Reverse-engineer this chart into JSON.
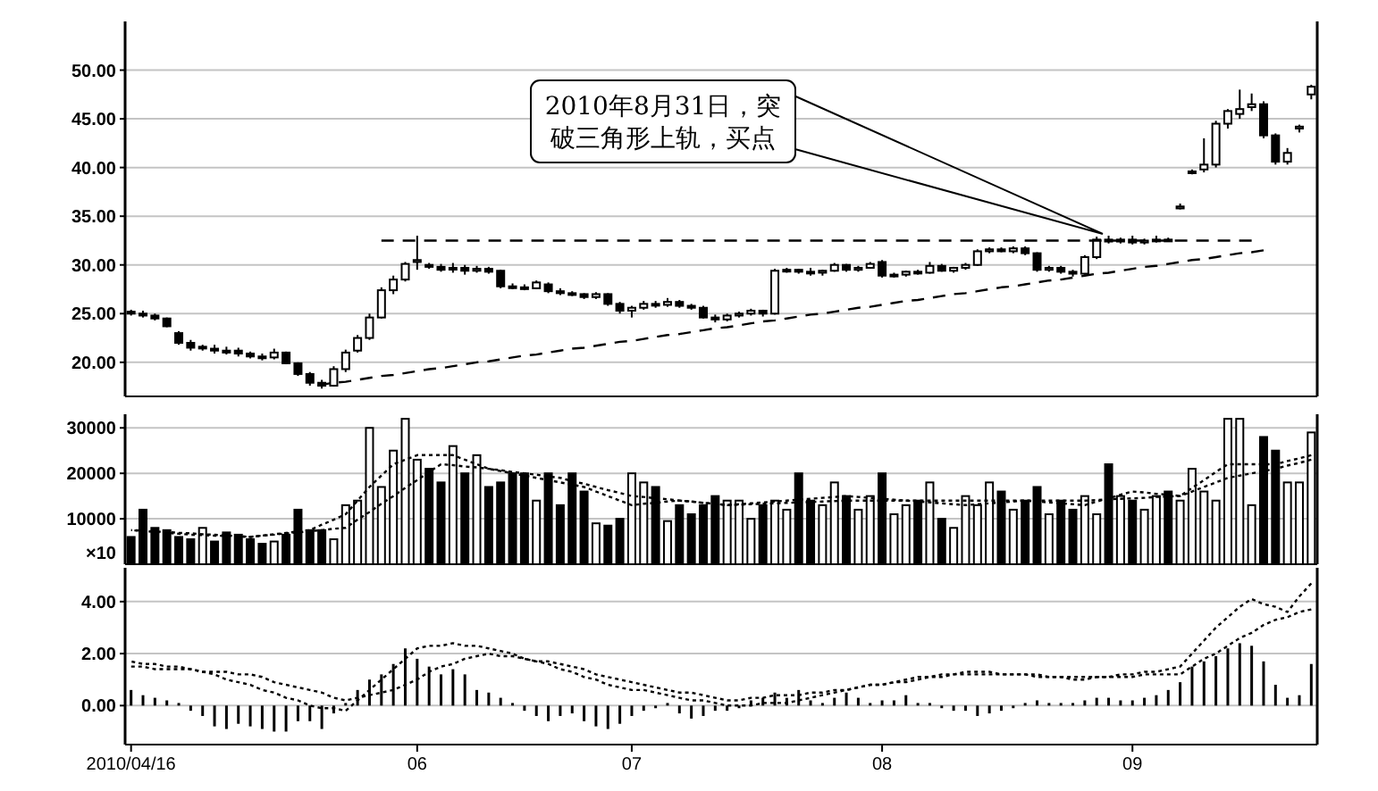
{
  "chart_data": [
    {
      "type": "candlestick",
      "categories": [
        "2010/04/16",
        null,
        null,
        null,
        null,
        null,
        null,
        null,
        null,
        null,
        null,
        null,
        null,
        null,
        null,
        null,
        null,
        null,
        null,
        null,
        null,
        null,
        null,
        null,
        "06",
        null,
        null,
        null,
        null,
        null,
        null,
        null,
        null,
        null,
        null,
        null,
        null,
        null,
        null,
        null,
        null,
        null,
        "07",
        null,
        null,
        null,
        null,
        null,
        null,
        null,
        null,
        null,
        null,
        null,
        null,
        null,
        null,
        null,
        null,
        null,
        null,
        null,
        null,
        "08",
        null,
        null,
        null,
        null,
        null,
        null,
        null,
        null,
        null,
        null,
        null,
        null,
        null,
        null,
        null,
        null,
        null,
        null,
        null,
        null,
        "09",
        null,
        null,
        null,
        null,
        null,
        null,
        null,
        null,
        null,
        null,
        null,
        null,
        null,
        null,
        null
      ],
      "ohlc": [
        [
          25.2,
          25.4,
          24.8,
          25.0
        ],
        [
          25.0,
          25.3,
          24.6,
          24.8
        ],
        [
          24.8,
          25.0,
          24.3,
          24.5
        ],
        [
          24.5,
          24.6,
          23.6,
          23.7
        ],
        [
          23.0,
          23.2,
          21.8,
          22.0
        ],
        [
          22.0,
          22.3,
          21.2,
          21.5
        ],
        [
          21.5,
          21.8,
          21.2,
          21.6
        ],
        [
          21.4,
          21.8,
          20.9,
          21.2
        ],
        [
          21.2,
          21.6,
          20.8,
          21.0
        ],
        [
          21.2,
          21.5,
          20.6,
          20.9
        ],
        [
          20.9,
          21.1,
          20.4,
          20.6
        ],
        [
          20.6,
          20.9,
          20.2,
          20.5
        ],
        [
          20.5,
          21.4,
          20.3,
          21.0
        ],
        [
          21.0,
          21.1,
          19.8,
          19.9
        ],
        [
          19.9,
          20.0,
          18.6,
          18.8
        ],
        [
          18.8,
          19.0,
          17.6,
          17.9
        ],
        [
          17.9,
          18.2,
          17.3,
          17.6
        ],
        [
          17.6,
          19.6,
          17.5,
          19.3
        ],
        [
          19.3,
          21.3,
          19.0,
          21.0
        ],
        [
          21.2,
          22.8,
          21.0,
          22.5
        ],
        [
          22.5,
          25.0,
          22.3,
          24.6
        ],
        [
          24.6,
          27.7,
          24.5,
          27.4
        ],
        [
          27.4,
          28.9,
          27.0,
          28.5
        ],
        [
          28.5,
          30.3,
          28.3,
          30.1
        ],
        [
          30.3,
          33.0,
          29.5,
          30.5
        ],
        [
          30.0,
          30.2,
          29.6,
          29.8
        ],
        [
          29.8,
          30.1,
          29.3,
          29.5
        ],
        [
          29.6,
          30.2,
          29.2,
          29.7
        ],
        [
          29.7,
          30.0,
          29.0,
          29.4
        ],
        [
          29.4,
          29.9,
          29.2,
          29.6
        ],
        [
          29.6,
          29.8,
          29.1,
          29.3
        ],
        [
          29.4,
          29.5,
          27.6,
          27.8
        ],
        [
          27.8,
          28.1,
          27.5,
          27.7
        ],
        [
          27.7,
          28.0,
          27.4,
          27.6
        ],
        [
          27.6,
          28.4,
          27.5,
          28.2
        ],
        [
          28.0,
          28.2,
          27.1,
          27.3
        ],
        [
          27.3,
          27.6,
          26.9,
          27.1
        ],
        [
          27.1,
          27.3,
          26.8,
          27.0
        ],
        [
          27.0,
          27.1,
          26.5,
          26.7
        ],
        [
          26.7,
          27.2,
          26.5,
          27.0
        ],
        [
          27.0,
          27.1,
          25.8,
          26.0
        ],
        [
          26.0,
          26.2,
          25.0,
          25.3
        ],
        [
          25.3,
          25.8,
          24.6,
          25.6
        ],
        [
          25.6,
          26.3,
          25.4,
          26.0
        ],
        [
          26.0,
          26.3,
          25.6,
          25.9
        ],
        [
          25.9,
          26.6,
          25.7,
          26.2
        ],
        [
          26.2,
          26.4,
          25.6,
          25.8
        ],
        [
          25.8,
          26.0,
          25.4,
          25.6
        ],
        [
          25.6,
          25.8,
          24.5,
          24.6
        ],
        [
          24.6,
          24.9,
          24.1,
          24.4
        ],
        [
          24.4,
          25.0,
          24.2,
          24.8
        ],
        [
          24.8,
          25.2,
          24.6,
          25.0
        ],
        [
          25.0,
          25.5,
          24.8,
          25.3
        ],
        [
          25.3,
          25.4,
          24.7,
          25.0
        ],
        [
          25.0,
          29.6,
          24.9,
          29.4
        ],
        [
          29.4,
          29.7,
          29.2,
          29.5
        ],
        [
          29.5,
          29.6,
          29.1,
          29.3
        ],
        [
          29.3,
          29.7,
          28.9,
          29.2
        ],
        [
          29.2,
          29.5,
          28.9,
          29.4
        ],
        [
          29.4,
          30.2,
          29.3,
          30.0
        ],
        [
          30.0,
          30.1,
          29.3,
          29.5
        ],
        [
          29.5,
          29.9,
          29.3,
          29.7
        ],
        [
          29.7,
          30.3,
          29.6,
          30.1
        ],
        [
          30.3,
          30.5,
          28.7,
          28.9
        ],
        [
          28.9,
          29.2,
          28.7,
          29.0
        ],
        [
          29.0,
          29.4,
          28.8,
          29.3
        ],
        [
          29.3,
          29.5,
          29.0,
          29.2
        ],
        [
          29.2,
          30.3,
          29.1,
          29.9
        ],
        [
          29.9,
          30.1,
          29.3,
          29.4
        ],
        [
          29.4,
          29.8,
          29.2,
          29.7
        ],
        [
          29.7,
          30.2,
          29.5,
          30.0
        ],
        [
          30.0,
          31.6,
          29.9,
          31.4
        ],
        [
          31.4,
          31.8,
          31.2,
          31.6
        ],
        [
          31.6,
          31.8,
          31.3,
          31.4
        ],
        [
          31.4,
          31.9,
          31.2,
          31.7
        ],
        [
          31.7,
          31.9,
          31.0,
          31.2
        ],
        [
          31.2,
          31.3,
          29.3,
          29.5
        ],
        [
          29.5,
          29.9,
          29.3,
          29.7
        ],
        [
          29.7,
          29.9,
          29.1,
          29.3
        ],
        [
          29.3,
          29.5,
          28.8,
          29.1
        ],
        [
          29.1,
          31.0,
          29.0,
          30.8
        ],
        [
          30.8,
          32.9,
          30.6,
          32.6
        ],
        [
          32.6,
          33.0,
          32.2,
          32.4
        ],
        [
          32.4,
          32.8,
          32.2,
          32.6
        ],
        [
          32.6,
          33.0,
          32.1,
          32.3
        ],
        [
          32.3,
          32.7,
          32.1,
          32.5
        ],
        [
          32.5,
          33.0,
          32.3,
          32.6
        ],
        [
          32.6,
          32.8,
          32.4,
          32.5
        ],
        [
          35.8,
          36.3,
          35.7,
          36.0
        ],
        [
          39.5,
          39.8,
          39.3,
          39.6
        ],
        [
          39.8,
          43.0,
          39.5,
          40.3
        ],
        [
          40.3,
          44.8,
          40.0,
          44.5
        ],
        [
          44.5,
          46.0,
          44.0,
          45.8
        ],
        [
          45.5,
          48.0,
          45.0,
          46.0
        ],
        [
          46.2,
          47.6,
          45.8,
          46.5
        ],
        [
          46.5,
          46.8,
          43.0,
          43.3
        ],
        [
          43.3,
          43.5,
          40.3,
          40.6
        ],
        [
          40.6,
          42.0,
          40.3,
          41.5
        ],
        [
          44.0,
          44.4,
          43.6,
          44.2
        ],
        [
          47.5,
          48.5,
          47.0,
          48.3
        ]
      ],
      "series": [
        {
          "type": "line",
          "values": [
            null,
            null,
            null,
            null,
            null,
            null,
            null,
            null,
            null,
            null,
            null,
            null,
            null,
            null,
            null,
            null,
            null,
            null,
            null,
            null,
            null,
            32.5,
            32.5,
            32.5,
            32.5,
            32.5,
            32.5,
            32.5,
            32.5,
            32.5,
            32.5,
            32.5,
            32.5,
            32.5,
            32.5,
            32.5,
            32.5,
            32.5,
            32.5,
            32.5,
            32.5,
            32.5,
            32.5,
            32.5,
            32.5,
            32.5,
            32.5,
            32.5,
            32.5,
            32.5,
            32.5,
            32.5,
            32.5,
            32.5,
            32.5,
            32.5,
            32.5,
            32.5,
            32.5,
            32.5,
            32.5,
            32.5,
            32.5,
            32.5,
            32.5,
            32.5,
            32.5,
            32.5,
            32.5,
            32.5,
            32.5,
            32.5,
            32.5,
            32.5,
            32.5,
            32.5,
            32.5,
            32.5,
            32.5,
            32.5,
            32.5,
            32.5,
            32.5,
            32.5,
            32.5,
            32.5,
            32.5,
            32.5,
            32.5,
            32.5,
            32.5,
            32.5,
            32.5,
            32.5,
            32.5,
            null,
            null,
            null,
            null,
            null
          ],
          "color": "#000000",
          "line_style": "dashed"
        },
        {
          "type": "line",
          "values": [
            null,
            null,
            null,
            null,
            null,
            null,
            null,
            null,
            null,
            null,
            null,
            null,
            null,
            null,
            null,
            17.5,
            17.7,
            17.9,
            18.0,
            18.2,
            18.4,
            18.6,
            18.7,
            18.9,
            19.1,
            19.3,
            19.4,
            19.6,
            19.8,
            20.0,
            20.1,
            20.3,
            20.5,
            20.7,
            20.8,
            21.0,
            21.2,
            21.4,
            21.5,
            21.7,
            21.9,
            22.1,
            22.2,
            22.4,
            22.6,
            22.8,
            22.9,
            23.1,
            23.3,
            23.5,
            23.6,
            23.8,
            24.0,
            24.2,
            24.3,
            24.5,
            24.7,
            24.9,
            25.0,
            25.2,
            25.4,
            25.6,
            25.7,
            25.9,
            26.1,
            26.3,
            26.4,
            26.6,
            26.8,
            27.0,
            27.1,
            27.3,
            27.5,
            27.7,
            27.8,
            28.0,
            28.2,
            28.4,
            28.5,
            28.7,
            28.9,
            29.1,
            29.2,
            29.4,
            29.6,
            29.8,
            29.9,
            30.1,
            30.3,
            30.5,
            30.6,
            30.8,
            31.0,
            31.2,
            31.3,
            31.5,
            null,
            null,
            null,
            null
          ],
          "color": "#000000",
          "line_style": "dashed"
        }
      ],
      "ylim": [
        16.5,
        55
      ],
      "yticks": [
        {
          "value": 20,
          "label": "20.00"
        },
        {
          "value": 25,
          "label": "25.00"
        },
        {
          "value": 30,
          "label": "30.00"
        },
        {
          "value": 35,
          "label": "35.00"
        },
        {
          "value": 40,
          "label": "40.00"
        },
        {
          "value": 45,
          "label": "45.00"
        },
        {
          "value": 50,
          "label": "50.00"
        }
      ],
      "grid": "y",
      "tick_labels": "y",
      "annotations": [
        "2010年8月31日，突破三角形上轨，买点"
      ]
    },
    {
      "type": "bar",
      "categories": [
        "2010/04/16",
        null,
        null,
        null,
        null,
        null,
        null,
        null,
        null,
        null,
        null,
        null,
        null,
        null,
        null,
        null,
        null,
        null,
        null,
        null,
        null,
        null,
        null,
        null,
        "06",
        null,
        null,
        null,
        null,
        null,
        null,
        null,
        null,
        null,
        null,
        null,
        null,
        null,
        null,
        null,
        null,
        null,
        "07",
        null,
        null,
        null,
        null,
        null,
        null,
        null,
        null,
        null,
        null,
        null,
        null,
        null,
        null,
        null,
        null,
        null,
        null,
        null,
        null,
        "08",
        null,
        null,
        null,
        null,
        null,
        null,
        null,
        null,
        null,
        null,
        null,
        null,
        null,
        null,
        null,
        null,
        null,
        null,
        null,
        null,
        "09",
        null,
        null,
        null,
        null,
        null,
        null,
        null,
        null,
        null,
        null,
        null,
        null,
        null,
        null,
        null
      ],
      "values": [
        6000,
        12000,
        8000,
        7500,
        6000,
        5500,
        8000,
        5000,
        7000,
        6500,
        5500,
        4500,
        5000,
        6500,
        12000,
        7500,
        7500,
        5500,
        13000,
        14000,
        30000,
        17000,
        25000,
        32000,
        23000,
        21000,
        18000,
        26000,
        20000,
        24000,
        17000,
        18000,
        20000,
        20000,
        14000,
        20000,
        13000,
        20000,
        16000,
        9000,
        8500,
        10000,
        20000,
        18000,
        17000,
        9500,
        13000,
        11000,
        13000,
        15000,
        14000,
        14000,
        10000,
        13000,
        14000,
        12000,
        20000,
        14000,
        13000,
        18000,
        15000,
        12000,
        15000,
        20000,
        11000,
        13000,
        14000,
        18000,
        10000,
        8000,
        15000,
        13000,
        18000,
        16000,
        12000,
        14000,
        17000,
        11000,
        14000,
        12000,
        15000,
        11000,
        22000,
        15000,
        14000,
        12000,
        15000,
        16000,
        14000,
        21000,
        16000,
        14000,
        32000,
        32000,
        13000,
        28000,
        25000,
        18000,
        18000,
        29000
      ],
      "colors": [
        "#000000",
        "#000000",
        "#000000",
        "#000000",
        "#000000",
        "#000000",
        "#ffffff",
        "#000000",
        "#000000",
        "#000000",
        "#000000",
        "#000000",
        "#ffffff",
        "#000000",
        "#000000",
        "#000000",
        "#000000",
        "#ffffff",
        "#ffffff",
        "#ffffff",
        "#ffffff",
        "#ffffff",
        "#ffffff",
        "#ffffff",
        "#ffffff",
        "#000000",
        "#000000",
        "#ffffff",
        "#000000",
        "#ffffff",
        "#000000",
        "#000000",
        "#000000",
        "#000000",
        "#ffffff",
        "#000000",
        "#000000",
        "#000000",
        "#000000",
        "#ffffff",
        "#000000",
        "#000000",
        "#ffffff",
        "#ffffff",
        "#000000",
        "#ffffff",
        "#000000",
        "#000000",
        "#000000",
        "#000000",
        "#ffffff",
        "#ffffff",
        "#ffffff",
        "#000000",
        "#ffffff",
        "#ffffff",
        "#000000",
        "#000000",
        "#ffffff",
        "#ffffff",
        "#000000",
        "#ffffff",
        "#ffffff",
        "#000000",
        "#ffffff",
        "#ffffff",
        "#000000",
        "#ffffff",
        "#000000",
        "#ffffff",
        "#ffffff",
        "#ffffff",
        "#ffffff",
        "#000000",
        "#ffffff",
        "#000000",
        "#000000",
        "#ffffff",
        "#000000",
        "#000000",
        "#ffffff",
        "#ffffff",
        "#000000",
        "#ffffff",
        "#000000",
        "#ffffff",
        "#ffffff",
        "#000000",
        "#ffffff",
        "#ffffff",
        "#ffffff",
        "#ffffff",
        "#ffffff",
        "#ffffff",
        "#ffffff",
        "#000000",
        "#000000",
        "#ffffff",
        "#ffffff",
        "#ffffff"
      ],
      "series": [
        {
          "type": "line",
          "values": [
            7500,
            7300,
            7100,
            6900,
            6700,
            6500,
            6400,
            6300,
            6200,
            6100,
            6000,
            6300,
            6600,
            6900,
            7200,
            7500,
            8700,
            9800,
            11000,
            14000,
            17000,
            19500,
            22000,
            23000,
            24000,
            24000,
            24000,
            24000,
            23000,
            22000,
            21000,
            20500,
            20000,
            19500,
            19000,
            18500,
            18000,
            17500,
            17000,
            16000,
            15000,
            14000,
            13000,
            13300,
            13500,
            13800,
            14000,
            13800,
            13500,
            13300,
            13000,
            13200,
            13400,
            13600,
            13800,
            14000,
            14200,
            14400,
            14600,
            14800,
            15000,
            14800,
            14600,
            14400,
            14200,
            14000,
            13800,
            13600,
            13400,
            13200,
            13000,
            13200,
            13400,
            13600,
            13800,
            14000,
            13800,
            13600,
            13400,
            13200,
            13000,
            13800,
            14500,
            15300,
            16000,
            15800,
            15500,
            15300,
            15000,
            16800,
            18500,
            20300,
            22000,
            22000,
            22000,
            22000,
            22000,
            22700,
            23300,
            24000
          ],
          "color": "#000000",
          "line_style": "dotted"
        },
        {
          "type": "line",
          "values": [
            7500,
            7400,
            7200,
            7100,
            6900,
            6800,
            6600,
            6500,
            6300,
            6200,
            6000,
            6300,
            6500,
            6800,
            7000,
            7300,
            7500,
            7800,
            8000,
            9800,
            11500,
            13300,
            15000,
            16800,
            18500,
            20300,
            22000,
            21800,
            21500,
            21300,
            21000,
            20700,
            20300,
            20000,
            19700,
            19300,
            19000,
            18300,
            17700,
            17000,
            16300,
            15700,
            15000,
            14800,
            14500,
            14300,
            14000,
            13800,
            13500,
            13300,
            13000,
            13100,
            13200,
            13300,
            13400,
            13500,
            13600,
            13700,
            13800,
            13900,
            14000,
            14000,
            14000,
            14000,
            14000,
            14000,
            14000,
            14000,
            14000,
            14000,
            14000,
            14000,
            14000,
            14000,
            14000,
            14000,
            14000,
            14000,
            14000,
            14000,
            14000,
            14100,
            14300,
            14400,
            14500,
            14600,
            14800,
            14900,
            15000,
            16000,
            17000,
            18000,
            19000,
            19500,
            20000,
            20500,
            21000,
            21700,
            22300,
            23000
          ],
          "color": "#000000",
          "line_style": "dotted"
        }
      ],
      "ylim": [
        0,
        33000
      ],
      "yticks": [
        10000,
        20000,
        30000
      ],
      "ylabel": "×10",
      "grid": "y",
      "tick_labels": "y"
    },
    {
      "type": "bar",
      "categories": [
        "2010/04/16",
        null,
        null,
        null,
        null,
        null,
        null,
        null,
        null,
        null,
        null,
        null,
        null,
        null,
        null,
        null,
        null,
        null,
        null,
        null,
        null,
        null,
        null,
        null,
        "06",
        null,
        null,
        null,
        null,
        null,
        null,
        null,
        null,
        null,
        null,
        null,
        null,
        null,
        null,
        null,
        null,
        null,
        "07",
        null,
        null,
        null,
        null,
        null,
        null,
        null,
        null,
        null,
        null,
        null,
        null,
        null,
        null,
        null,
        null,
        null,
        null,
        null,
        null,
        "08",
        null,
        null,
        null,
        null,
        null,
        null,
        null,
        null,
        null,
        null,
        null,
        null,
        null,
        null,
        null,
        null,
        null,
        null,
        null,
        null,
        "09",
        null,
        null,
        null,
        null,
        null,
        null,
        null,
        null,
        null,
        null,
        null,
        null,
        null,
        null,
        null
      ],
      "values": [
        0.6,
        0.4,
        0.3,
        0.2,
        0.1,
        -0.2,
        -0.4,
        -0.8,
        -0.9,
        -0.7,
        -0.8,
        -0.9,
        -1.0,
        -1.0,
        -0.6,
        -0.6,
        -0.9,
        -0.3,
        0.1,
        0.6,
        1.0,
        1.2,
        1.6,
        2.2,
        1.8,
        1.5,
        1.2,
        1.4,
        1.2,
        0.6,
        0.5,
        0.3,
        0.1,
        -0.2,
        -0.4,
        -0.6,
        -0.4,
        -0.3,
        -0.6,
        -0.8,
        -0.9,
        -0.7,
        -0.4,
        -0.2,
        -0.1,
        0.1,
        -0.3,
        -0.5,
        -0.4,
        -0.2,
        -0.2,
        -0.1,
        0.2,
        0.3,
        0.5,
        0.3,
        0.6,
        0.2,
        0.1,
        0.3,
        0.5,
        0.3,
        0.1,
        0.2,
        0.2,
        0.4,
        0.1,
        0.1,
        -0.1,
        -0.2,
        -0.2,
        -0.4,
        -0.3,
        -0.2,
        -0.1,
        0.1,
        0.2,
        0.1,
        0.1,
        0.1,
        0.2,
        0.3,
        0.3,
        0.2,
        0.2,
        0.3,
        0.4,
        0.6,
        0.9,
        1.5,
        1.7,
        1.9,
        2.2,
        2.4,
        2.3,
        1.7,
        0.8,
        0.3,
        0.4,
        1.6
      ],
      "color": "#000000",
      "series": [
        {
          "type": "line",
          "values": [
            1.7,
            1.6,
            1.6,
            1.5,
            1.5,
            1.4,
            1.3,
            1.2,
            1.0,
            0.9,
            0.8,
            0.6,
            0.5,
            0.3,
            0.2,
            0.0,
            -0.1,
            -0.1,
            -0.2,
            0.2,
            0.6,
            1.0,
            1.4,
            1.8,
            2.2,
            2.3,
            2.3,
            2.4,
            2.3,
            2.3,
            2.2,
            2.1,
            2.0,
            1.8,
            1.7,
            1.6,
            1.4,
            1.3,
            1.1,
            1.0,
            0.8,
            0.7,
            0.6,
            0.6,
            0.5,
            0.4,
            0.3,
            0.2,
            0.2,
            0.1,
            0.0,
            0.0,
            0.0,
            0.1,
            0.1,
            0.1,
            0.2,
            0.3,
            0.4,
            0.5,
            0.6,
            0.7,
            0.8,
            0.8,
            0.9,
            1.0,
            1.1,
            1.1,
            1.2,
            1.2,
            1.3,
            1.3,
            1.3,
            1.2,
            1.2,
            1.2,
            1.2,
            1.1,
            1.1,
            1.0,
            1.0,
            1.1,
            1.1,
            1.2,
            1.2,
            1.3,
            1.3,
            1.4,
            1.5,
            2.0,
            2.5,
            3.0,
            3.4,
            3.8,
            4.1,
            3.9,
            3.8,
            3.6,
            4.2,
            4.7
          ],
          "color": "#000000",
          "line_style": "dotted"
        },
        {
          "type": "line",
          "values": [
            1.5,
            1.5,
            1.4,
            1.4,
            1.4,
            1.4,
            1.3,
            1.3,
            1.3,
            1.2,
            1.2,
            1.1,
            0.9,
            0.8,
            0.7,
            0.6,
            0.5,
            0.3,
            0.2,
            0.3,
            0.4,
            0.5,
            0.6,
            0.8,
            1.0,
            1.3,
            1.5,
            1.6,
            1.8,
            1.9,
            2.0,
            1.9,
            1.9,
            1.8,
            1.7,
            1.7,
            1.6,
            1.5,
            1.4,
            1.2,
            1.1,
            1.0,
            0.9,
            0.8,
            0.7,
            0.6,
            0.5,
            0.5,
            0.4,
            0.3,
            0.2,
            0.2,
            0.3,
            0.3,
            0.4,
            0.4,
            0.4,
            0.5,
            0.5,
            0.6,
            0.6,
            0.7,
            0.8,
            0.8,
            0.9,
            0.9,
            1.0,
            1.1,
            1.1,
            1.2,
            1.2,
            1.2,
            1.2,
            1.2,
            1.2,
            1.2,
            1.1,
            1.1,
            1.1,
            1.1,
            1.1,
            1.1,
            1.1,
            1.1,
            1.1,
            1.2,
            1.2,
            1.2,
            1.2,
            1.5,
            1.8,
            2.0,
            2.3,
            2.6,
            2.8,
            3.1,
            3.3,
            3.4,
            3.6,
            3.7
          ],
          "color": "#000000",
          "line_style": "dotted"
        }
      ],
      "ylim": [
        -1.5,
        5.3
      ],
      "yticks": [
        {
          "value": 0,
          "label": "0.00"
        },
        {
          "value": 2,
          "label": "2.00"
        },
        {
          "value": 4,
          "label": "4.00"
        }
      ],
      "grid": "y"
    }
  ]
}
